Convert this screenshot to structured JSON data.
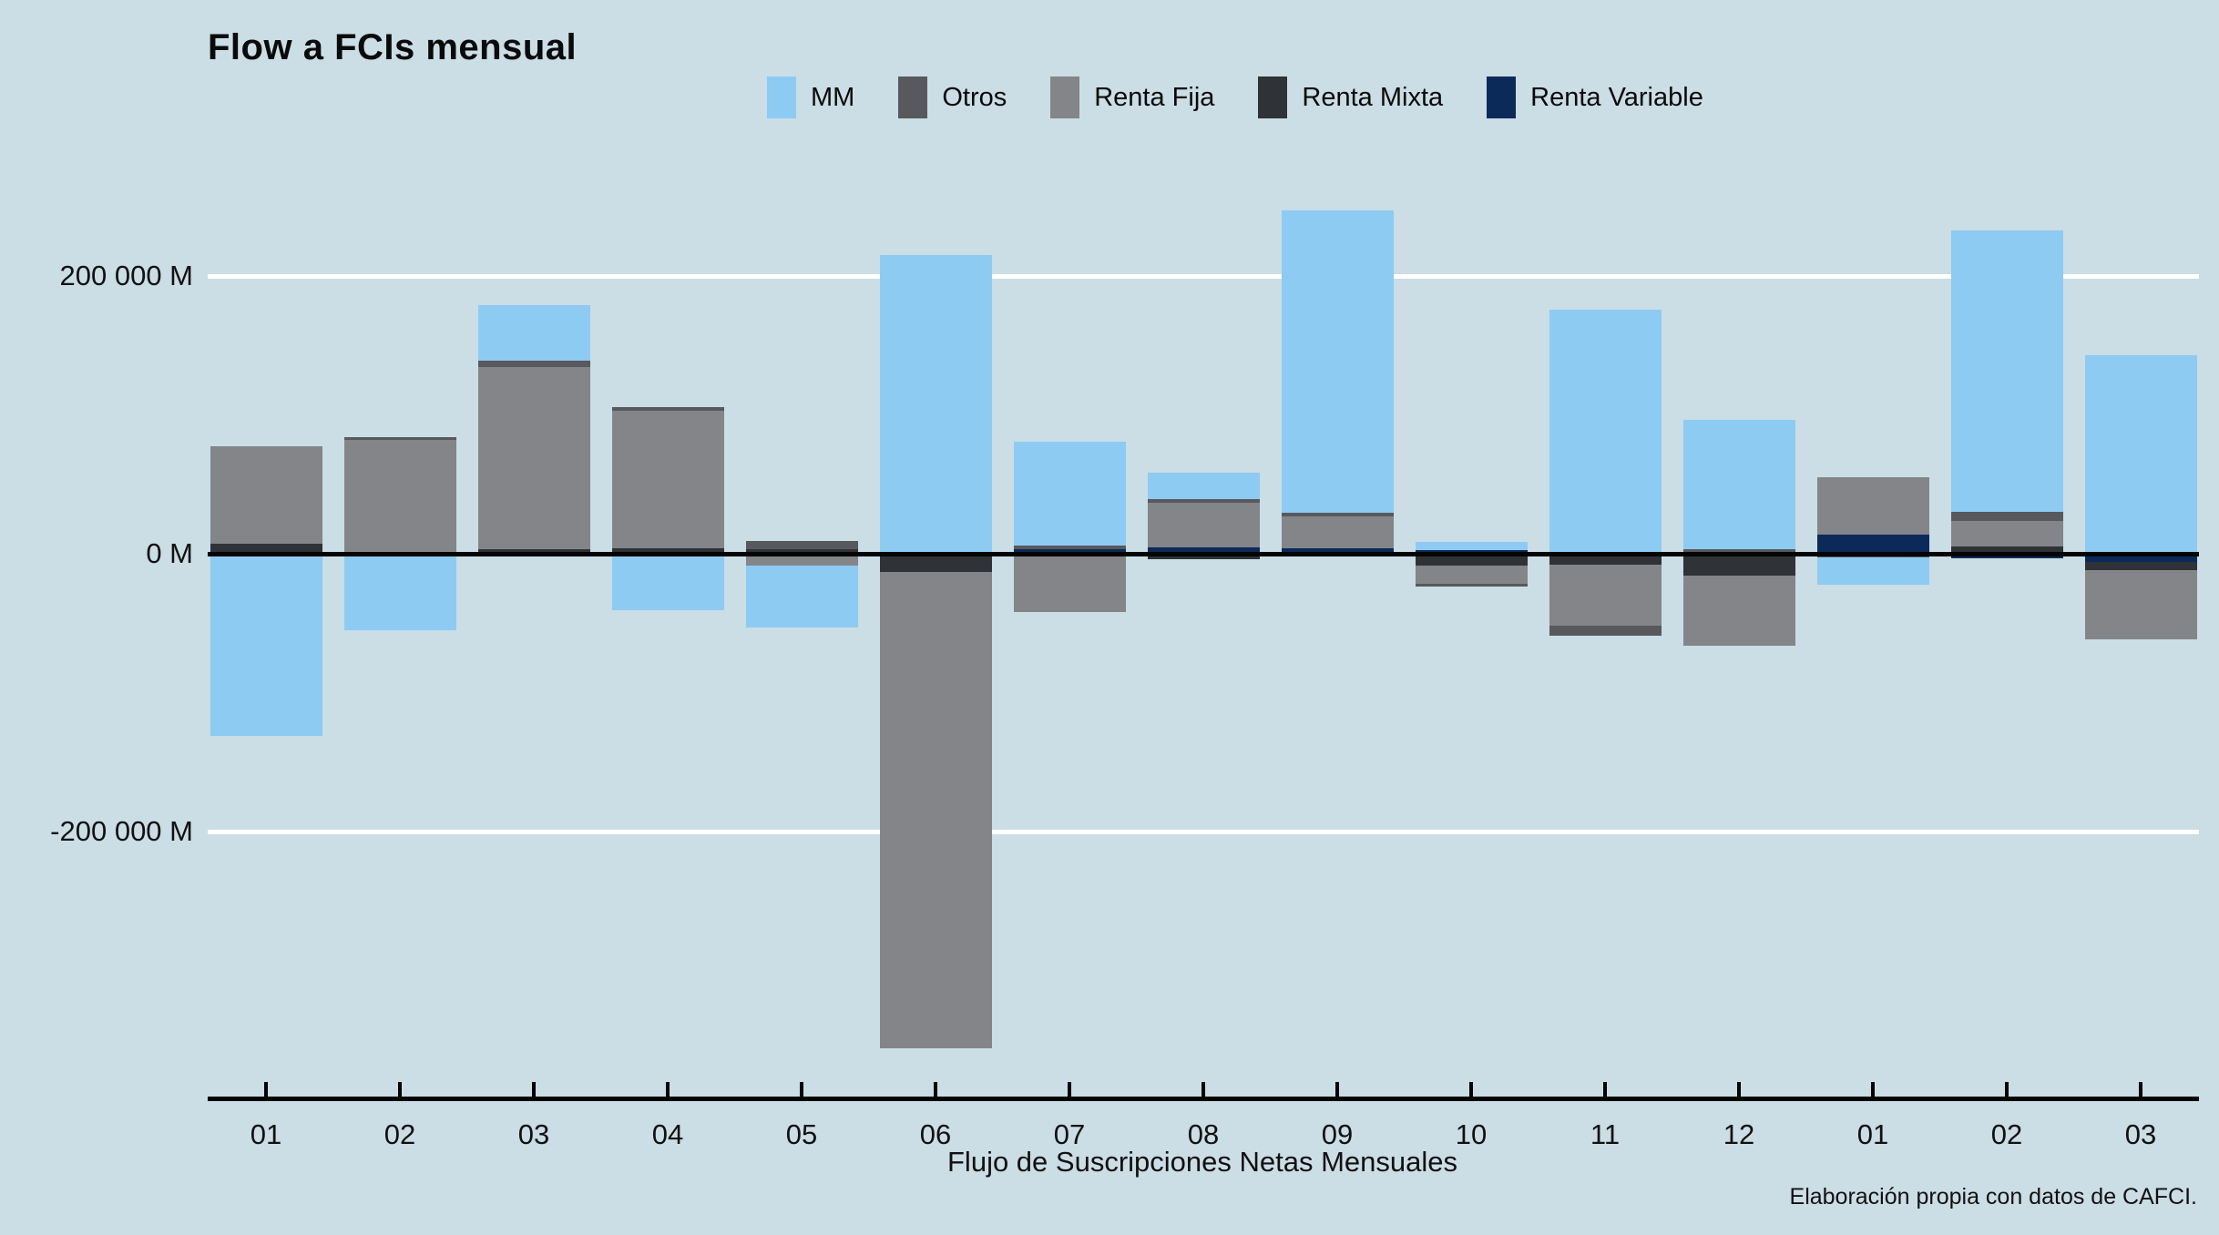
{
  "title": "Flow a FCIs mensual",
  "background_color": "#CBDDE5",
  "caption": "Flujo de Suscripciones Netas Mensuales",
  "credit": "Elaboración propia con datos de CAFCI.",
  "y_axis": {
    "labels": [
      {
        "text": "200 000 M",
        "value": 200000
      },
      {
        "text": "0 M",
        "value": 0
      },
      {
        "text": "-200 000 M",
        "value": -200000
      }
    ]
  },
  "chart_data": {
    "type": "bar",
    "stacked": true,
    "title": "Flow a FCIs mensual",
    "xlabel": "Flujo de Suscripciones Netas Mensuales",
    "ylabel": "",
    "ylim": [
      -390000,
      305000
    ],
    "grid": "horizontal-white-at-plus-minus-200000",
    "legend_position": "top",
    "unit": "M",
    "categories": [
      "01",
      "02",
      "03",
      "04",
      "05",
      "06",
      "07",
      "08",
      "09",
      "10",
      "11",
      "12",
      "01",
      "02",
      "03"
    ],
    "series": [
      {
        "name": "MM",
        "color": "#8DCBF3",
        "values": [
          -131000,
          -55000,
          40000,
          -40500,
          -45000,
          215000,
          75000,
          19000,
          218000,
          5800,
          176000,
          93000,
          -20000,
          203000,
          143000
        ]
      },
      {
        "name": "Otros",
        "color": "#58595D",
        "values": [
          0,
          2000,
          4200,
          2500,
          6000,
          0,
          2600,
          2500,
          2600,
          -1900,
          -7000,
          3500,
          -2500,
          6400,
          0
        ]
      },
      {
        "name": "Renta Fija",
        "color": "#838589",
        "values": [
          70000,
          82000,
          131000,
          99000,
          -8400,
          -343000,
          -42000,
          32500,
          22700,
          -13000,
          -44000,
          -50500,
          41300,
          18600,
          -50200
        ]
      },
      {
        "name": "Renta Mixta",
        "color": "#2F3236",
        "values": [
          7500,
          0,
          3600,
          4200,
          3000,
          -13000,
          0,
          -4000,
          0,
          -8400,
          -7700,
          -16000,
          0,
          5100,
          -5500
        ]
      },
      {
        "name": "Renta Variable",
        "color": "#0C2A59",
        "values": [
          0,
          0,
          0,
          0,
          0,
          0,
          3200,
          4500,
          3900,
          2600,
          0,
          0,
          14000,
          -3000,
          -6000
        ]
      }
    ],
    "stack_order_from_axis": [
      "Renta Variable",
      "Renta Mixta",
      "Renta Fija",
      "Otros",
      "MM"
    ]
  }
}
